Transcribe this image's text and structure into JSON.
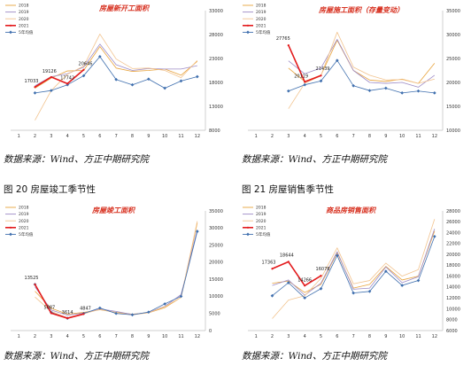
{
  "source_text": "数据来源：Wind、方正中期研究院",
  "captions": {
    "fig20": "图 20 房屋竣工季节性",
    "fig21": "图 21 房屋销售季节性"
  },
  "colors": {
    "2018": "#e8a33c",
    "2019": "#9d8bc6",
    "2020": "#f2c38e",
    "2021": "#e31a1c",
    "avg": "#3f6fae",
    "title": "#d7301f"
  },
  "chart_data": [
    {
      "type": "line",
      "title": "房屋新开工面积",
      "xlabel": "",
      "ylabel": "",
      "x": [
        1,
        2,
        3,
        4,
        5,
        6,
        7,
        8,
        9,
        10,
        11,
        12
      ],
      "x_ticks": [
        "1",
        "2",
        "3",
        "4",
        "5",
        "6",
        "7",
        "8",
        "9",
        "10",
        "11",
        "12"
      ],
      "ylim": [
        8000,
        33000
      ],
      "y_ticks": [
        "8000",
        "13000",
        "18000",
        "23000",
        "28000",
        "33000"
      ],
      "grid": false,
      "legend_position": "top-left",
      "series": [
        {
          "name": "2018",
          "values": [
            null,
            16800,
            18900,
            20400,
            20500,
            25500,
            21000,
            20300,
            20500,
            20800,
            19500,
            22400
          ]
        },
        {
          "name": "2019",
          "values": [
            null,
            17300,
            19200,
            19800,
            21200,
            26000,
            21700,
            20500,
            20900,
            20800,
            20800,
            21500
          ]
        },
        {
          "name": "2020",
          "values": [
            null,
            10100,
            16300,
            19700,
            21400,
            28100,
            22900,
            20900,
            21000,
            20500,
            19000,
            22600
          ]
        },
        {
          "name": "2021",
          "values": [
            null,
            17033,
            19126,
            17742,
            20646,
            null,
            null,
            null,
            null,
            null,
            null,
            null
          ]
        },
        {
          "name": "5年均值",
          "values": [
            null,
            15800,
            16300,
            17500,
            19400,
            23400,
            18600,
            17500,
            18700,
            16800,
            18300,
            19200
          ]
        }
      ],
      "data_labels": [
        {
          "series": "2021",
          "x": 2,
          "text": "17033"
        },
        {
          "series": "2021",
          "x": 3,
          "text": "19126"
        },
        {
          "series": "2021",
          "x": 4,
          "text": "17742"
        },
        {
          "series": "2021",
          "x": 5,
          "text": "20646"
        }
      ]
    },
    {
      "type": "line",
      "title": "房屋施工面积（存量变动）",
      "xlabel": "",
      "ylabel": "",
      "x": [
        1,
        2,
        3,
        4,
        5,
        6,
        7,
        8,
        9,
        10,
        11,
        12
      ],
      "x_ticks": [
        "1",
        "2",
        "3",
        "4",
        "5",
        "6",
        "7",
        "8",
        "9",
        "10",
        "11",
        "12"
      ],
      "ylim": [
        10000,
        35000
      ],
      "y_ticks": [
        "10000",
        "15000",
        "20000",
        "25000",
        "30000",
        "35000"
      ],
      "grid": false,
      "legend_position": "top-left",
      "series": [
        {
          "name": "2018",
          "values": [
            null,
            null,
            23000,
            20200,
            21500,
            28800,
            22500,
            20500,
            20200,
            20700,
            19800,
            24000
          ]
        },
        {
          "name": "2019",
          "values": [
            null,
            null,
            24500,
            21800,
            23000,
            29000,
            22500,
            20000,
            19800,
            20000,
            19000,
            21500
          ]
        },
        {
          "name": "2020",
          "values": [
            null,
            null,
            14500,
            19800,
            21400,
            30500,
            23200,
            21500,
            20500,
            20600,
            19800,
            20700
          ]
        },
        {
          "name": "2021",
          "values": [
            null,
            null,
            27765,
            20119,
            21439,
            null,
            null,
            null,
            null,
            null,
            null,
            null
          ]
        },
        {
          "name": "5年均值",
          "values": [
            null,
            null,
            18200,
            19500,
            20300,
            24600,
            19300,
            18300,
            18800,
            17800,
            18200,
            17800
          ]
        }
      ],
      "data_labels": [
        {
          "series": "2021",
          "x": 3,
          "text": "27765"
        },
        {
          "series": "2021",
          "x": 4,
          "text": "20119"
        },
        {
          "series": "2021",
          "x": 5,
          "text": "21439"
        }
      ]
    },
    {
      "type": "line",
      "title": "房屋竣工面积",
      "xlabel": "",
      "ylabel": "",
      "x": [
        1,
        2,
        3,
        4,
        5,
        6,
        7,
        8,
        9,
        10,
        11,
        12
      ],
      "x_ticks": [
        "1",
        "2",
        "3",
        "4",
        "5",
        "6",
        "7",
        "8",
        "9",
        "10",
        "11",
        "12"
      ],
      "ylim": [
        0,
        35000
      ],
      "y_ticks": [
        "0",
        "5000",
        "10000",
        "15000",
        "20000",
        "25000",
        "30000",
        "35000"
      ],
      "grid": false,
      "legend_position": "top-left",
      "series": [
        {
          "name": "2018",
          "values": [
            null,
            11500,
            6500,
            4800,
            5300,
            6100,
            5300,
            4800,
            5200,
            6700,
            9700,
            31500
          ]
        },
        {
          "name": "2019",
          "values": [
            null,
            12800,
            6000,
            4500,
            5100,
            6300,
            5600,
            4700,
            5300,
            7100,
            10500,
            29500
          ]
        },
        {
          "name": "2020",
          "values": [
            null,
            9800,
            5600,
            3700,
            4900,
            6200,
            5200,
            4600,
            5200,
            7000,
            9700,
            32000
          ]
        },
        {
          "name": "2021",
          "values": [
            null,
            13525,
            5087,
            3614,
            4847,
            null,
            null,
            null,
            null,
            null,
            null,
            null
          ]
        },
        {
          "name": "5年均值",
          "values": [
            null,
            13500,
            5300,
            3600,
            5000,
            6600,
            5000,
            4600,
            5400,
            7800,
            10000,
            29000
          ]
        }
      ],
      "data_labels": [
        {
          "series": "2021",
          "x": 2,
          "text": "13525"
        },
        {
          "series": "2021",
          "x": 3,
          "text": "5087"
        },
        {
          "series": "2021",
          "x": 4,
          "text": "3614"
        },
        {
          "series": "2021",
          "x": 5,
          "text": "4847"
        }
      ]
    },
    {
      "type": "line",
      "title": "商品房销售面积",
      "xlabel": "",
      "ylabel": "",
      "x": [
        1,
        2,
        3,
        4,
        5,
        6,
        7,
        8,
        9,
        10,
        11,
        12
      ],
      "x_ticks": [
        "1",
        "2",
        "3",
        "4",
        "5",
        "6",
        "7",
        "8",
        "9",
        "10",
        "11",
        "12"
      ],
      "ylim": [
        6000,
        28000
      ],
      "y_ticks": [
        "6000",
        "8000",
        "10000",
        "12000",
        "14000",
        "16000",
        "18000",
        "20000",
        "22000",
        "24000",
        "26000",
        "28000"
      ],
      "grid": false,
      "legend_position": "top-left",
      "series": [
        {
          "name": "2018",
          "values": [
            null,
            14700,
            15100,
            13000,
            14500,
            20300,
            13800,
            14500,
            17800,
            15300,
            16000,
            24300
          ]
        },
        {
          "name": "2019",
          "values": [
            null,
            14300,
            15300,
            12500,
            14700,
            20500,
            13600,
            13800,
            17700,
            14800,
            15900,
            24700
          ]
        },
        {
          "name": "2020",
          "values": [
            null,
            8200,
            11600,
            12400,
            15600,
            21200,
            14600,
            15200,
            18400,
            16000,
            17200,
            26500
          ]
        },
        {
          "name": "2021",
          "values": [
            null,
            17363,
            18644,
            14266,
            16078,
            null,
            null,
            null,
            null,
            null,
            null,
            null
          ]
        },
        {
          "name": "5年均值",
          "values": [
            null,
            12400,
            14800,
            12000,
            13700,
            19800,
            12900,
            13200,
            16900,
            14300,
            15200,
            23300
          ]
        }
      ],
      "data_labels": [
        {
          "series": "2021",
          "x": 2,
          "text": "17363"
        },
        {
          "series": "2021",
          "x": 3,
          "text": "18644"
        },
        {
          "series": "2021",
          "x": 4,
          "text": "14266"
        },
        {
          "series": "2021",
          "x": 5,
          "text": "16078"
        }
      ]
    }
  ]
}
